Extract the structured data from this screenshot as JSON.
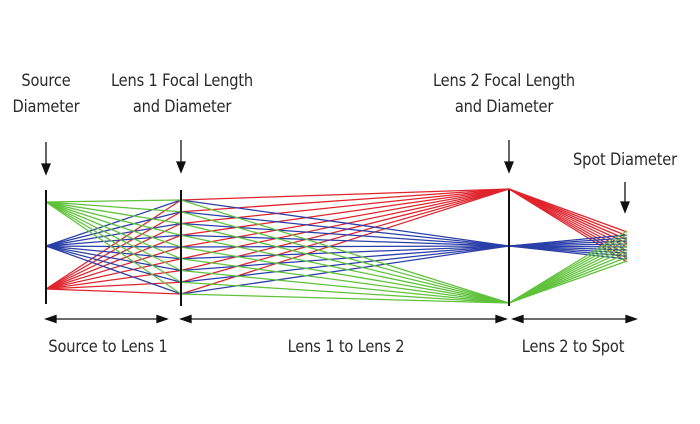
{
  "labels": {
    "source_diameter": [
      "Source",
      "Diameter"
    ],
    "lens1_focal": [
      "Lens 1 Focal Length",
      "and Diameter"
    ],
    "lens2_focal": [
      "Lens 2 Focal Length",
      "and Diameter"
    ],
    "spot_diameter": "Spot Diameter",
    "source_to_lens1": "Source to Lens 1",
    "lens1_to_lens2": "Lens 1 to Lens 2",
    "lens2_to_spot": "Lens 2 to Spot"
  },
  "colors": {
    "red_rays": "#e0242c",
    "blue_rays": "#2b3fa8",
    "green_rays": "#5fc23a",
    "lines": "#111111"
  },
  "ray_bundles": [
    {
      "name": "red",
      "color_key": "red_rays"
    },
    {
      "name": "blue",
      "color_key": "blue_rays"
    },
    {
      "name": "green",
      "color_key": "green_rays"
    }
  ],
  "rays_per_bundle": 9
}
